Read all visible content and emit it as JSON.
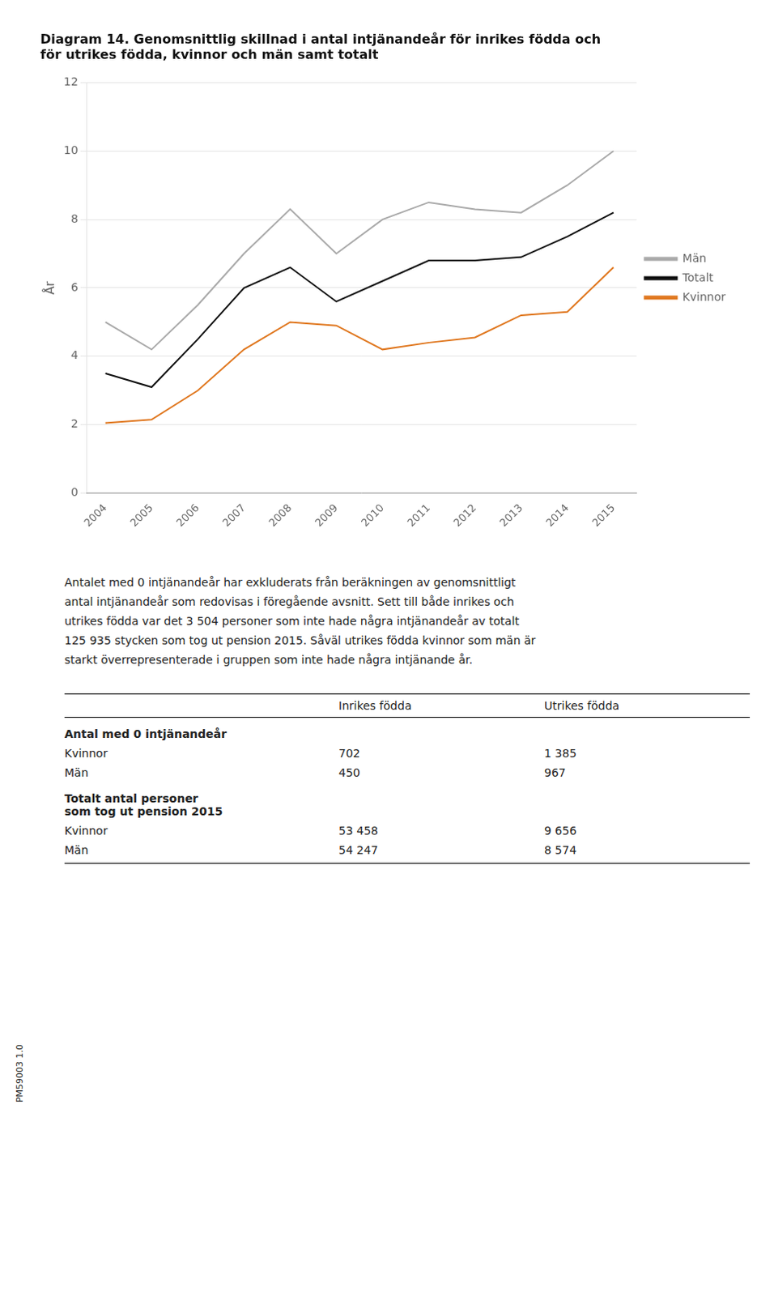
{
  "chart_data": {
    "type": "line",
    "title": [
      "Diagram 14. Genomsnittlig skillnad i antal intjänandeår för inrikes födda och",
      "för utrikes födda, kvinnor och män samt totalt"
    ],
    "ylabel": "År",
    "x": [
      2004,
      2005,
      2006,
      2007,
      2008,
      2009,
      2010,
      2011,
      2012,
      2013,
      2014,
      2015
    ],
    "series": [
      {
        "name": "Män",
        "color": "#aaaaaa",
        "values": [
          5.0,
          4.2,
          5.5,
          7.0,
          8.3,
          7.0,
          8.0,
          8.5,
          8.3,
          8.2,
          9.0,
          10.0
        ]
      },
      {
        "name": "Totalt",
        "color": "#111111",
        "values": [
          3.5,
          3.1,
          4.5,
          6.0,
          6.6,
          5.6,
          6.2,
          6.8,
          6.8,
          6.9,
          7.5,
          8.2
        ]
      },
      {
        "name": "Kvinnor",
        "color": "#e07820",
        "values": [
          2.05,
          2.15,
          3.0,
          4.2,
          5.0,
          4.9,
          4.2,
          4.4,
          4.55,
          5.2,
          5.3,
          6.6
        ]
      }
    ],
    "xlim": [
      2003.6,
      2015.5
    ],
    "xticks": [
      2004,
      2005,
      2006,
      2007,
      2008,
      2009,
      2010,
      2011,
      2012,
      2013,
      2014,
      2015
    ],
    "ylim": [
      0,
      12
    ],
    "yticks": [
      0,
      2,
      4,
      6,
      8,
      10,
      12
    ],
    "grid": "y",
    "legend": "right"
  },
  "body_text": [
    "Antalet med 0 intjänandeår har exkluderats från beräkningen av genomsnittligt",
    "antal intjänandeår som redovisas i föregående avsnitt. Sett till både inrikes och",
    "utrikes födda var det 3 504 personer som inte hade några intjänandeår av totalt",
    "125 935 stycken som tog ut pension 2015. Såväl utrikes födda kvinnor som män är",
    "starkt överrepresenterade i gruppen som inte hade några intjänande år."
  ],
  "table": {
    "columns": [
      "Inrikes födda",
      "Utrikes födda"
    ],
    "sections": [
      {
        "heading": [
          "Antal med 0 intjänandeår"
        ],
        "rows": [
          {
            "label": "Kvinnor",
            "values": [
              702,
              {
                "value": 1385,
                "label": "1 385"
              }
            ]
          },
          {
            "label": "Män",
            "values": [
              450,
              967
            ]
          }
        ]
      },
      {
        "heading": [
          "Totalt antal personer",
          "som tog ut pension 2015"
        ],
        "rows": [
          {
            "label": "Kvinnor",
            "values": [
              {
                "value": 53458,
                "label": "53 458"
              },
              {
                "value": 9656,
                "label": "9 656"
              }
            ]
          },
          {
            "label": "Män",
            "values": [
              {
                "value": 54247,
                "label": "54 247"
              },
              {
                "value": 8574,
                "label": "8 574"
              }
            ]
          }
        ]
      }
    ]
  },
  "footer": "PM59003 1.0"
}
